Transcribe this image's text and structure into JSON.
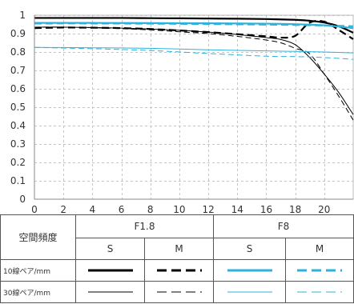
{
  "chart_data": {
    "type": "line",
    "xlim": [
      0,
      22
    ],
    "ylim": [
      0,
      1
    ],
    "x_ticks": [
      0,
      2,
      4,
      6,
      8,
      10,
      12,
      14,
      16,
      18,
      20
    ],
    "y_ticks": [
      0,
      0.1,
      0.2,
      0.3,
      0.4,
      0.5,
      0.6,
      0.7,
      0.8,
      0.9,
      1
    ],
    "grid": true,
    "series": [
      {
        "name": "F1.8 10線ペア/mm S",
        "color": "#000000",
        "dash": "solid",
        "width": 2.2,
        "x": [
          0,
          2,
          4,
          6,
          8,
          10,
          12,
          14,
          16,
          18,
          19,
          20,
          21,
          22
        ],
        "y": [
          0.985,
          0.985,
          0.985,
          0.985,
          0.984,
          0.983,
          0.982,
          0.981,
          0.979,
          0.975,
          0.97,
          0.96,
          0.94,
          0.905
        ]
      },
      {
        "name": "F1.8 10線ペア/mm M",
        "color": "#000000",
        "dash": "dashed",
        "width": 2.2,
        "x": [
          0,
          2,
          4,
          6,
          8,
          10,
          12,
          14,
          16,
          17,
          18,
          19,
          20,
          21,
          22
        ],
        "y": [
          0.93,
          0.933,
          0.932,
          0.93,
          0.925,
          0.917,
          0.908,
          0.897,
          0.885,
          0.878,
          0.888,
          0.96,
          0.965,
          0.92,
          0.87
        ]
      },
      {
        "name": "F1.8 30線ペア/mm S",
        "color": "#000000",
        "dash": "solid",
        "width": 1,
        "x": [
          0,
          2,
          4,
          6,
          8,
          10,
          12,
          14,
          16,
          17,
          18,
          19,
          20,
          21,
          22
        ],
        "y": [
          0.935,
          0.935,
          0.933,
          0.93,
          0.925,
          0.918,
          0.908,
          0.895,
          0.878,
          0.868,
          0.84,
          0.77,
          0.68,
          0.58,
          0.46
        ]
      },
      {
        "name": "F1.8 30線ペア/mm M",
        "color": "#000000",
        "dash": "dashed",
        "width": 1,
        "x": [
          0,
          2,
          4,
          6,
          8,
          10,
          12,
          14,
          16,
          17,
          18,
          19,
          20,
          21,
          22
        ],
        "y": [
          0.935,
          0.935,
          0.932,
          0.927,
          0.92,
          0.91,
          0.9,
          0.885,
          0.865,
          0.85,
          0.82,
          0.79,
          0.68,
          0.56,
          0.43
        ]
      },
      {
        "name": "F8 10線ペア/mm S",
        "color": "#2eb2dc",
        "dash": "solid",
        "width": 2.2,
        "x": [
          0,
          4,
          8,
          12,
          16,
          18,
          20,
          22
        ],
        "y": [
          0.958,
          0.958,
          0.957,
          0.956,
          0.954,
          0.951,
          0.945,
          0.93
        ]
      },
      {
        "name": "F8 10線ペア/mm M",
        "color": "#2eb2dc",
        "dash": "dashed",
        "width": 2.2,
        "x": [
          0,
          4,
          8,
          12,
          16,
          18,
          20,
          22
        ],
        "y": [
          0.955,
          0.955,
          0.954,
          0.952,
          0.949,
          0.947,
          0.944,
          0.94
        ]
      },
      {
        "name": "F8 30線ペア/mm S",
        "color": "#2eb2dc",
        "dash": "solid",
        "width": 1,
        "x": [
          0,
          4,
          8,
          12,
          16,
          18,
          20,
          22
        ],
        "y": [
          0.825,
          0.823,
          0.82,
          0.812,
          0.806,
          0.803,
          0.8,
          0.795
        ]
      },
      {
        "name": "F8 30線ペア/mm M",
        "color": "#2eb2dc",
        "dash": "dashed",
        "width": 1,
        "x": [
          0,
          4,
          8,
          12,
          16,
          18,
          20,
          22
        ],
        "y": [
          0.825,
          0.818,
          0.808,
          0.792,
          0.777,
          0.775,
          0.77,
          0.76
        ]
      }
    ]
  },
  "table": {
    "corner_label": "空間頻度",
    "groups": [
      {
        "label": "F1.8",
        "color": "#000000"
      },
      {
        "label": "F8",
        "color": "#2eb2dc"
      }
    ],
    "subheaders": [
      "S",
      "M",
      "S",
      "M"
    ],
    "rows": [
      {
        "label": "10線ペア/mm",
        "weight": "thick"
      },
      {
        "label": "30線ペア/mm",
        "weight": "thin"
      }
    ]
  }
}
